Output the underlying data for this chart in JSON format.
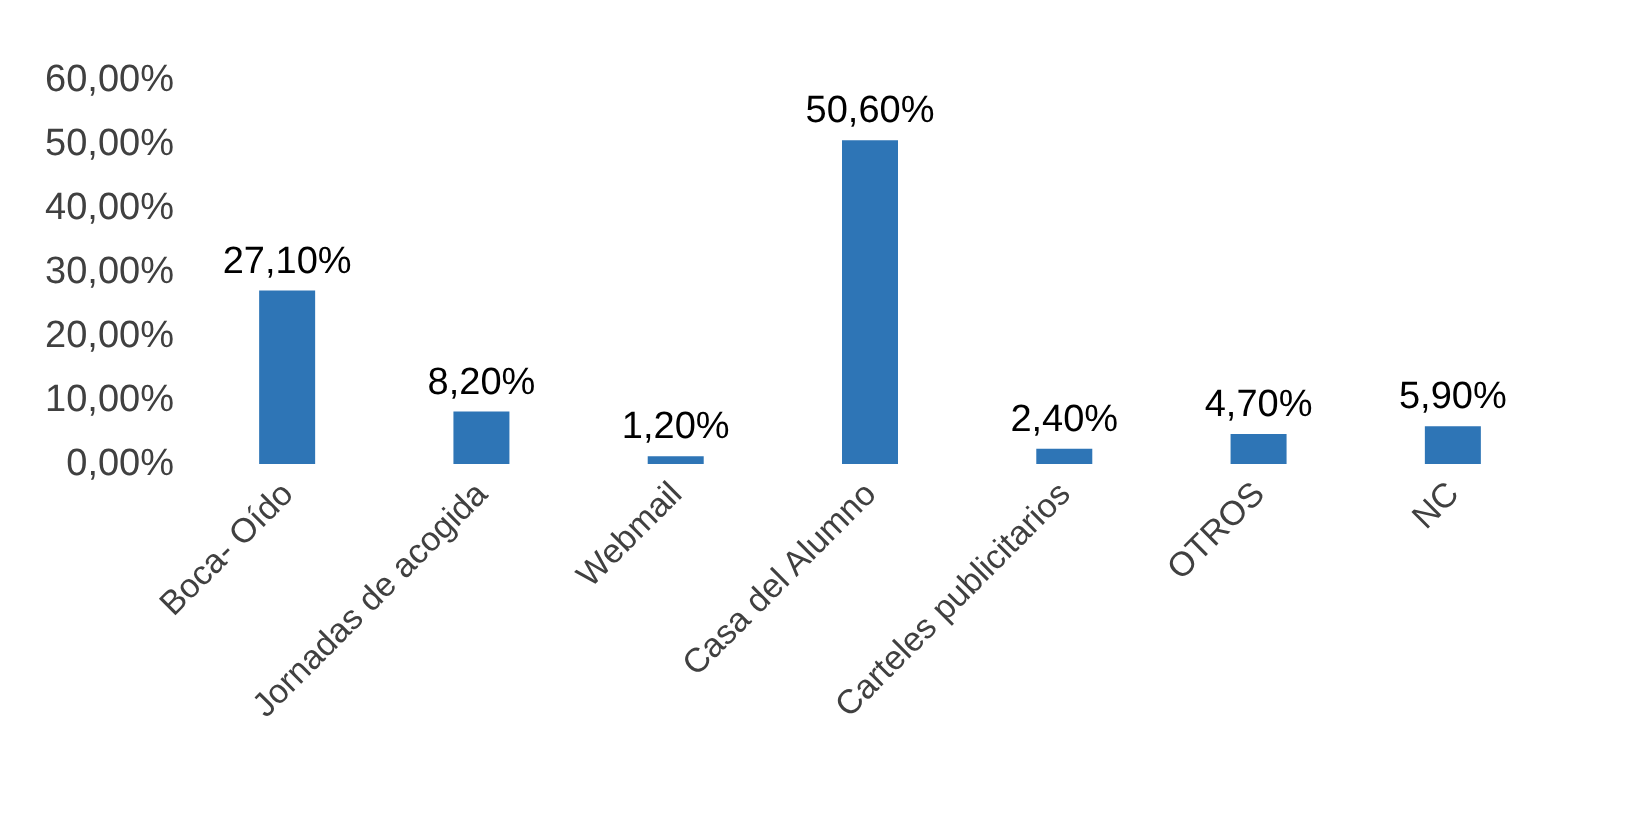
{
  "chart_data": {
    "type": "bar",
    "categories": [
      "Boca- Oído",
      "Jornadas de acogida",
      "Webmail",
      "Casa del Alumno",
      "Carteles publicitarios",
      "OTROS",
      "NC"
    ],
    "values": [
      27.1,
      8.2,
      1.2,
      50.6,
      2.4,
      4.7,
      5.9
    ],
    "value_labels": [
      "27,10%",
      "8,20%",
      "1,20%",
      "50,60%",
      "2,40%",
      "4,70%",
      "5,90%"
    ],
    "color": "#2e75b6",
    "ylim": [
      0,
      60
    ],
    "yticks": [
      {
        "value": 0,
        "label": "0,00%"
      },
      {
        "value": 10,
        "label": "10,00%"
      },
      {
        "value": 20,
        "label": "20,00%"
      },
      {
        "value": 30,
        "label": "30,00%"
      },
      {
        "value": 40,
        "label": "40,00%"
      },
      {
        "value": 50,
        "label": "50,00%"
      },
      {
        "value": 60,
        "label": "60,00%"
      }
    ],
    "grid": false
  }
}
